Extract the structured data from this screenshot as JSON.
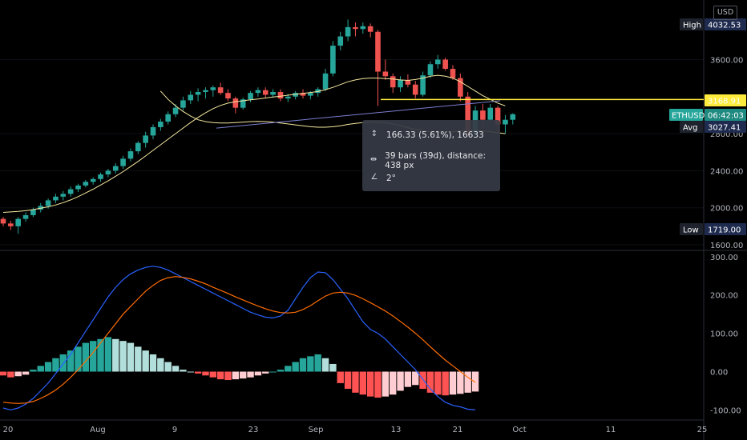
{
  "currency_button": "USD",
  "price_tags": {
    "high_label": "High",
    "high_value": "4032.53",
    "line_value": "3168.91",
    "symbol": "ETHUSD",
    "countdown": "06:42:03",
    "avg_label": "Avg",
    "avg_value": "3027.41",
    "low_label": "Low",
    "low_value": "1719.00"
  },
  "price_axis_ticks": [
    "3600.00",
    "2800.00",
    "2400.00",
    "2000.00",
    "1600.00"
  ],
  "macd_axis_ticks": [
    "300.00",
    "200.00",
    "100.00",
    "0.00",
    "-100.00"
  ],
  "time_axis_ticks": [
    "20",
    "Aug",
    "9",
    "23",
    "Sep",
    "13",
    "21",
    "Oct",
    "11",
    "25"
  ],
  "tooltip": {
    "price_change": "166.33 (5.61%), 16633",
    "bars_distance": "39 bars (39d), distance: 438 px",
    "angle": "2°"
  },
  "colors": {
    "up": "#26a69a",
    "down": "#ef5350",
    "hist_up_strong": "#26a69a",
    "hist_up_weak": "#b2dfdb",
    "hist_down_strong": "#ff5252",
    "hist_down_weak": "#ffcdd2",
    "macd_line": "#2962ff",
    "signal_line": "#ff6d00",
    "ma_line": "#f5e79e",
    "hline": "#ffeb3b",
    "trendline": "#7b7fd1"
  },
  "chart_data": {
    "type": "candlestick",
    "symbol": "ETHUSD",
    "interval": "1D",
    "y_range_price": [
      1600,
      4200
    ],
    "y_range_macd": [
      -120,
      310
    ],
    "horizontal_line": 3168.91,
    "candles": [
      {
        "o": 1880,
        "h": 1900,
        "l": 1800,
        "c": 1830
      },
      {
        "o": 1830,
        "h": 1860,
        "l": 1760,
        "c": 1800
      },
      {
        "o": 1800,
        "h": 1900,
        "l": 1719,
        "c": 1880
      },
      {
        "o": 1880,
        "h": 1950,
        "l": 1850,
        "c": 1920
      },
      {
        "o": 1920,
        "h": 2000,
        "l": 1900,
        "c": 1980
      },
      {
        "o": 1980,
        "h": 2050,
        "l": 1950,
        "c": 2020
      },
      {
        "o": 2020,
        "h": 2100,
        "l": 1990,
        "c": 2080
      },
      {
        "o": 2080,
        "h": 2150,
        "l": 2050,
        "c": 2120
      },
      {
        "o": 2120,
        "h": 2180,
        "l": 2080,
        "c": 2150
      },
      {
        "o": 2150,
        "h": 2230,
        "l": 2120,
        "c": 2200
      },
      {
        "o": 2200,
        "h": 2260,
        "l": 2170,
        "c": 2240
      },
      {
        "o": 2240,
        "h": 2300,
        "l": 2220,
        "c": 2280
      },
      {
        "o": 2280,
        "h": 2330,
        "l": 2250,
        "c": 2310
      },
      {
        "o": 2310,
        "h": 2380,
        "l": 2280,
        "c": 2360
      },
      {
        "o": 2360,
        "h": 2420,
        "l": 2330,
        "c": 2400
      },
      {
        "o": 2400,
        "h": 2480,
        "l": 2370,
        "c": 2450
      },
      {
        "o": 2450,
        "h": 2560,
        "l": 2420,
        "c": 2530
      },
      {
        "o": 2530,
        "h": 2640,
        "l": 2500,
        "c": 2610
      },
      {
        "o": 2610,
        "h": 2720,
        "l": 2580,
        "c": 2700
      },
      {
        "o": 2700,
        "h": 2820,
        "l": 2650,
        "c": 2780
      },
      {
        "o": 2780,
        "h": 2900,
        "l": 2740,
        "c": 2870
      },
      {
        "o": 2870,
        "h": 2960,
        "l": 2830,
        "c": 2930
      },
      {
        "o": 2930,
        "h": 3040,
        "l": 2900,
        "c": 3010
      },
      {
        "o": 3010,
        "h": 3120,
        "l": 2980,
        "c": 3080
      },
      {
        "o": 3080,
        "h": 3200,
        "l": 3050,
        "c": 3160
      },
      {
        "o": 3160,
        "h": 3260,
        "l": 3120,
        "c": 3220
      },
      {
        "o": 3220,
        "h": 3290,
        "l": 3150,
        "c": 3250
      },
      {
        "o": 3250,
        "h": 3300,
        "l": 3180,
        "c": 3270
      },
      {
        "o": 3270,
        "h": 3320,
        "l": 3200,
        "c": 3300
      },
      {
        "o": 3300,
        "h": 3350,
        "l": 3220,
        "c": 3240
      },
      {
        "o": 3240,
        "h": 3280,
        "l": 3150,
        "c": 3180
      },
      {
        "o": 3180,
        "h": 3200,
        "l": 3020,
        "c": 3080
      },
      {
        "o": 3080,
        "h": 3190,
        "l": 3060,
        "c": 3170
      },
      {
        "o": 3170,
        "h": 3260,
        "l": 3140,
        "c": 3240
      },
      {
        "o": 3240,
        "h": 3300,
        "l": 3200,
        "c": 3270
      },
      {
        "o": 3270,
        "h": 3300,
        "l": 3190,
        "c": 3220
      },
      {
        "o": 3220,
        "h": 3280,
        "l": 3190,
        "c": 3250
      },
      {
        "o": 3250,
        "h": 3280,
        "l": 3150,
        "c": 3180
      },
      {
        "o": 3180,
        "h": 3230,
        "l": 3140,
        "c": 3200
      },
      {
        "o": 3200,
        "h": 3260,
        "l": 3170,
        "c": 3240
      },
      {
        "o": 3240,
        "h": 3280,
        "l": 3180,
        "c": 3210
      },
      {
        "o": 3210,
        "h": 3260,
        "l": 3170,
        "c": 3240
      },
      {
        "o": 3240,
        "h": 3300,
        "l": 3200,
        "c": 3280
      },
      {
        "o": 3280,
        "h": 3500,
        "l": 3260,
        "c": 3450
      },
      {
        "o": 3450,
        "h": 3800,
        "l": 3420,
        "c": 3750
      },
      {
        "o": 3750,
        "h": 3900,
        "l": 3700,
        "c": 3850
      },
      {
        "o": 3850,
        "h": 4032.53,
        "l": 3800,
        "c": 3950
      },
      {
        "o": 3950,
        "h": 4000,
        "l": 3850,
        "c": 3930
      },
      {
        "o": 3930,
        "h": 4000,
        "l": 3880,
        "c": 3960
      },
      {
        "o": 3960,
        "h": 3990,
        "l": 3840,
        "c": 3900
      },
      {
        "o": 3900,
        "h": 3920,
        "l": 3100,
        "c": 3470
      },
      {
        "o": 3470,
        "h": 3600,
        "l": 3380,
        "c": 3420
      },
      {
        "o": 3420,
        "h": 3450,
        "l": 3240,
        "c": 3300
      },
      {
        "o": 3300,
        "h": 3420,
        "l": 3250,
        "c": 3380
      },
      {
        "o": 3380,
        "h": 3440,
        "l": 3300,
        "c": 3330
      },
      {
        "o": 3330,
        "h": 3370,
        "l": 3180,
        "c": 3220
      },
      {
        "o": 3220,
        "h": 3470,
        "l": 3200,
        "c": 3430
      },
      {
        "o": 3430,
        "h": 3580,
        "l": 3400,
        "c": 3550
      },
      {
        "o": 3550,
        "h": 3650,
        "l": 3500,
        "c": 3600
      },
      {
        "o": 3600,
        "h": 3620,
        "l": 3480,
        "c": 3500
      },
      {
        "o": 3500,
        "h": 3540,
        "l": 3380,
        "c": 3400
      },
      {
        "o": 3400,
        "h": 3450,
        "l": 3150,
        "c": 3200
      },
      {
        "o": 3200,
        "h": 3250,
        "l": 2750,
        "c": 2800
      },
      {
        "o": 2800,
        "h": 3100,
        "l": 2760,
        "c": 3050
      },
      {
        "o": 3050,
        "h": 3120,
        "l": 2880,
        "c": 2950
      },
      {
        "o": 2950,
        "h": 3120,
        "l": 2920,
        "c": 3080
      },
      {
        "o": 3080,
        "h": 3100,
        "l": 2800,
        "c": 2900
      },
      {
        "o": 2900,
        "h": 3000,
        "l": 2800,
        "c": 2950
      },
      {
        "o": 2950,
        "h": 3020,
        "l": 2900,
        "c": 3010
      }
    ],
    "ma": [
      1950,
      1955,
      1960,
      1968,
      1980,
      1995,
      2010,
      2030,
      2055,
      2085,
      2120,
      2160,
      2200,
      2245,
      2290,
      2340,
      2390,
      2445,
      2500,
      2560,
      2620,
      2680,
      2740,
      2800,
      2860,
      2920,
      2975,
      3025,
      3070,
      3105,
      3130,
      3145,
      3155,
      3165,
      3175,
      3185,
      3195,
      3205,
      3215,
      3225,
      3235,
      3245,
      3255,
      3275,
      3300,
      3330,
      3360,
      3380,
      3395,
      3400,
      3400,
      3395,
      3390,
      3380,
      3375,
      3385,
      3400,
      3420,
      3430,
      3420,
      3400,
      3360,
      3310,
      3260,
      3210,
      3170,
      3130,
      3100
    ],
    "ma_lower": [
      null,
      null,
      null,
      null,
      null,
      null,
      null,
      null,
      null,
      null,
      null,
      null,
      null,
      null,
      null,
      null,
      null,
      null,
      null,
      null,
      null,
      3260,
      3170,
      3100,
      3040,
      2990,
      2950,
      2930,
      2920,
      2915,
      2915,
      2920,
      2925,
      2930,
      2932,
      2930,
      2925,
      2915,
      2905,
      2895,
      2885,
      2875,
      2870,
      2870,
      2875,
      2885,
      2900,
      2910,
      2920,
      2925,
      2925,
      2920,
      2905,
      2885,
      2865,
      2845,
      2830,
      2820,
      2815,
      2815,
      2820,
      2830,
      2835,
      2835,
      2830,
      2820,
      2810,
      2800
    ],
    "macd": [
      -95,
      -100,
      -95,
      -85,
      -70,
      -50,
      -30,
      -5,
      20,
      45,
      75,
      105,
      135,
      165,
      195,
      220,
      240,
      255,
      265,
      272,
      275,
      272,
      265,
      255,
      245,
      235,
      225,
      215,
      205,
      195,
      185,
      175,
      165,
      155,
      148,
      142,
      140,
      145,
      160,
      190,
      220,
      245,
      260,
      258,
      240,
      215,
      190,
      160,
      130,
      110,
      100,
      85,
      65,
      45,
      25,
      5,
      -20,
      -45,
      -65,
      -80,
      -88,
      -92,
      -98,
      -100
    ],
    "signal": [
      -80,
      -82,
      -83,
      -82,
      -78,
      -70,
      -60,
      -48,
      -33,
      -15,
      5,
      27,
      50,
      75,
      100,
      125,
      150,
      170,
      190,
      210,
      225,
      238,
      245,
      248,
      246,
      242,
      236,
      229,
      220,
      212,
      204,
      195,
      187,
      179,
      171,
      164,
      158,
      154,
      153,
      155,
      162,
      172,
      185,
      197,
      205,
      207,
      205,
      199,
      190,
      180,
      169,
      158,
      145,
      131,
      116,
      100,
      83,
      65,
      47,
      30,
      15,
      0,
      -15,
      -28
    ],
    "histogram": [
      -10,
      -15,
      -12,
      -8,
      5,
      15,
      25,
      35,
      45,
      55,
      65,
      75,
      80,
      85,
      90,
      85,
      80,
      75,
      65,
      55,
      45,
      35,
      25,
      15,
      5,
      0,
      -5,
      -10,
      -15,
      -20,
      -22,
      -20,
      -18,
      -15,
      -10,
      -5,
      0,
      5,
      15,
      25,
      35,
      40,
      45,
      35,
      20,
      -30,
      -45,
      -55,
      -60,
      -65,
      -68,
      -65,
      -60,
      -50,
      -40,
      -35,
      -45,
      -55,
      -60,
      -62,
      -60,
      -58,
      -55,
      -52
    ]
  }
}
